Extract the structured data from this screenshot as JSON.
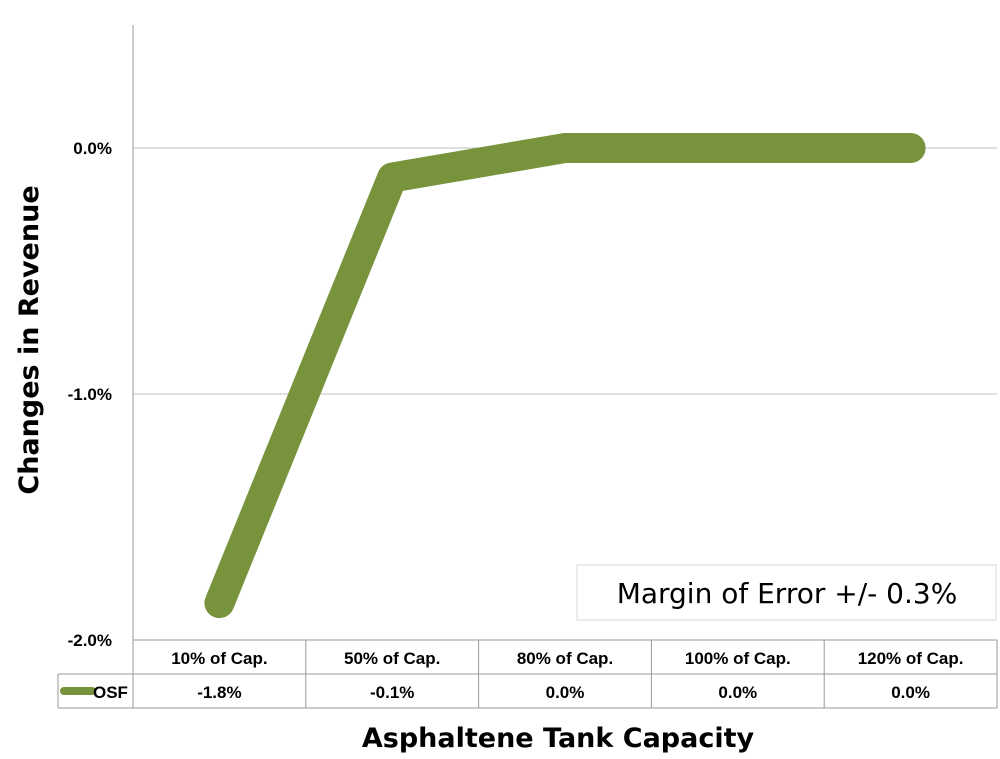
{
  "chart_data": {
    "type": "line",
    "title": "",
    "xlabel": "Asphaltene Tank Capacity",
    "ylabel": "Changes in Revenue",
    "categories": [
      "10% of Cap.",
      "50% of Cap.",
      "80% of Cap.",
      "100% of Cap.",
      "120% of Cap."
    ],
    "series": [
      {
        "name": "OSF",
        "values": [
          -1.85,
          -0.12,
          0.0,
          0.0,
          0.0
        ],
        "table_labels": [
          "-1.8%",
          "-0.1%",
          "0.0%",
          "0.0%",
          "0.0%"
        ],
        "color": "#77933c"
      }
    ],
    "ylim": [
      -2.0,
      0.5
    ],
    "yticks": [
      0.0,
      -1.0,
      -2.0
    ],
    "ytick_labels": [
      "0.0%",
      "-1.0%",
      "-2.0%"
    ],
    "grid": true,
    "data_table": true,
    "annotation": "Margin of Error +/- 0.3%"
  }
}
